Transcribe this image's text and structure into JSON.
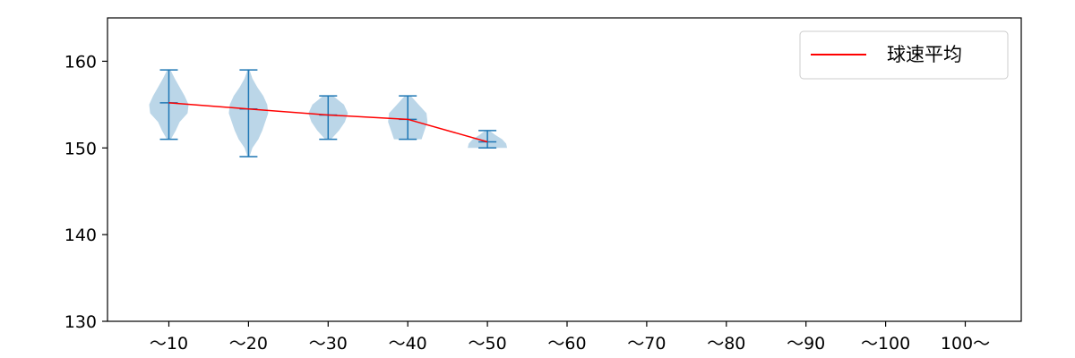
{
  "chart_data": {
    "type": "violin",
    "categories": [
      "〜10",
      "〜20",
      "〜30",
      "〜40",
      "〜50",
      "〜60",
      "〜70",
      "〜80",
      "〜90",
      "〜100",
      "100〜"
    ],
    "ylim": [
      130,
      165
    ],
    "yticks": [
      130,
      140,
      150,
      160
    ],
    "violins": [
      {
        "category": "〜10",
        "min": 151,
        "max": 159,
        "mean": 155.2,
        "kde": [
          [
            151,
            0.1
          ],
          [
            152,
            0.35
          ],
          [
            153,
            0.55
          ],
          [
            154,
            0.95
          ],
          [
            155,
            1.0
          ],
          [
            156,
            0.8
          ],
          [
            157,
            0.55
          ],
          [
            158,
            0.3
          ],
          [
            159,
            0.08
          ]
        ]
      },
      {
        "category": "〜20",
        "min": 149,
        "max": 159,
        "mean": 154.5,
        "kde": [
          [
            149,
            0.05
          ],
          [
            150,
            0.2
          ],
          [
            151,
            0.5
          ],
          [
            152,
            0.7
          ],
          [
            153,
            0.85
          ],
          [
            154,
            1.0
          ],
          [
            155,
            0.95
          ],
          [
            156,
            0.75
          ],
          [
            157,
            0.45
          ],
          [
            158,
            0.2
          ],
          [
            159,
            0.05
          ]
        ]
      },
      {
        "category": "〜30",
        "min": 151,
        "max": 156,
        "mean": 153.8,
        "kde": [
          [
            151,
            0.15
          ],
          [
            152,
            0.55
          ],
          [
            153,
            0.85
          ],
          [
            154,
            1.0
          ],
          [
            155,
            0.8
          ],
          [
            156,
            0.25
          ]
        ]
      },
      {
        "category": "〜40",
        "min": 151,
        "max": 156,
        "mean": 153.3,
        "kde": [
          [
            151,
            0.7
          ],
          [
            152,
            0.85
          ],
          [
            153,
            1.0
          ],
          [
            154,
            0.95
          ],
          [
            155,
            0.55
          ],
          [
            156,
            0.15
          ]
        ]
      },
      {
        "category": "〜50",
        "min": 150,
        "max": 152,
        "mean": 150.7,
        "kde": [
          [
            150,
            1.0
          ],
          [
            150.5,
            0.95
          ],
          [
            151,
            0.75
          ],
          [
            151.5,
            0.4
          ],
          [
            152,
            0.1
          ]
        ]
      }
    ],
    "series": [
      {
        "name": "球速平均",
        "color": "#ff0000",
        "x": [
          "〜10",
          "〜20",
          "〜30",
          "〜40",
          "〜50"
        ],
        "values": [
          155.2,
          154.5,
          153.8,
          153.3,
          150.7
        ]
      }
    ],
    "violin_color": "#1f77b4",
    "legend_position": "top-right",
    "grid": false
  }
}
